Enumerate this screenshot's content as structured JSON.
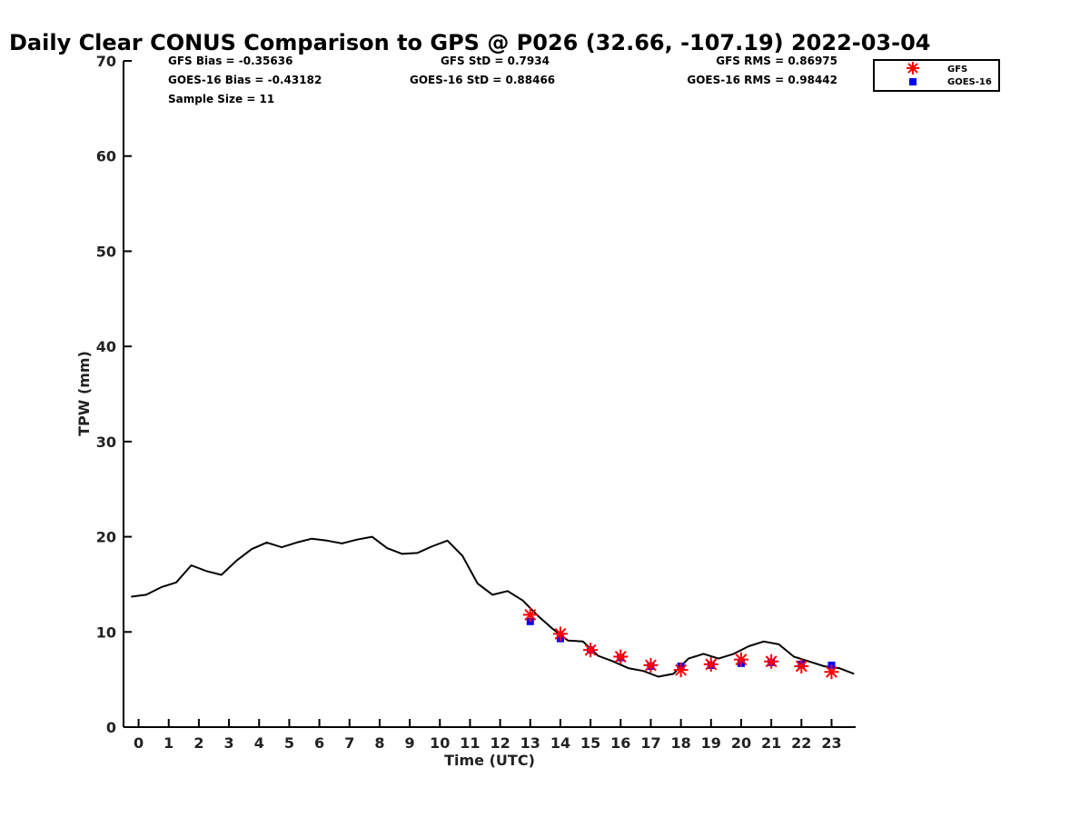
{
  "chart_data": {
    "type": "scatter",
    "title": "Daily Clear CONUS Comparison to GPS @ P026 (32.66, -107.19) 2022-03-04",
    "xlabel": "Time (UTC)",
    "ylabel": "TPW (mm)",
    "xlim": [
      -0.5,
      23.8
    ],
    "ylim": [
      0,
      70
    ],
    "xticks": [
      0,
      1,
      2,
      3,
      4,
      5,
      6,
      7,
      8,
      9,
      10,
      11,
      12,
      13,
      14,
      15,
      16,
      17,
      18,
      19,
      20,
      21,
      22,
      23
    ],
    "yticks": [
      0,
      10,
      20,
      30,
      40,
      50,
      60,
      70
    ],
    "grid": false,
    "legend_position": "top-right",
    "stats": {
      "gfs_bias": "GFS Bias = -0.35636",
      "goes_bias": "GOES-16 Bias = -0.43182",
      "sample_size": "Sample Size = 11",
      "gfs_std": "GFS StD = 0.7934",
      "goes_std": "GOES-16 StD = 0.88466",
      "gfs_rms": "GFS RMS = 0.86975",
      "goes_rms": "GOES-16 RMS = 0.98442"
    },
    "gps_line": {
      "color": "#000000",
      "x": [
        -0.25,
        0.25,
        0.75,
        1.25,
        1.75,
        2.25,
        2.75,
        3.25,
        3.75,
        4.25,
        4.75,
        5.25,
        5.75,
        6.25,
        6.75,
        7.25,
        7.75,
        8.25,
        8.75,
        9.25,
        9.75,
        10.25,
        10.75,
        11.25,
        11.75,
        12.25,
        12.75,
        13.25,
        13.75,
        14.25,
        14.75,
        15.25,
        15.75,
        16.25,
        16.75,
        17.25,
        17.75,
        18.25,
        18.75,
        19.25,
        19.75,
        20.25,
        20.75,
        21.25,
        21.75,
        22.25,
        22.75,
        23.25,
        23.75
      ],
      "y": [
        13.7,
        13.9,
        14.7,
        15.2,
        17.0,
        16.4,
        16.0,
        17.5,
        18.7,
        19.4,
        18.9,
        19.4,
        19.8,
        19.6,
        19.3,
        19.7,
        20.0,
        18.8,
        18.2,
        18.3,
        19.0,
        19.6,
        18.0,
        15.1,
        13.9,
        14.3,
        13.3,
        11.7,
        10.3,
        9.1,
        9.0,
        7.5,
        6.9,
        6.2,
        5.9,
        5.3,
        5.6,
        7.2,
        7.7,
        7.2,
        7.7,
        8.5,
        9.0,
        8.7,
        7.4,
        6.9,
        6.4,
        6.2,
        5.6
      ]
    },
    "series": [
      {
        "name": "GFS",
        "color": "#ff0000",
        "marker": "asterisk",
        "x": [
          13,
          14,
          15,
          16,
          17,
          18,
          19,
          20,
          21,
          22,
          23
        ],
        "y": [
          11.8,
          9.8,
          8.1,
          7.4,
          6.5,
          6.0,
          6.6,
          7.1,
          6.9,
          6.4,
          5.8
        ]
      },
      {
        "name": "GOES-16",
        "color": "#0000ff",
        "marker": "square",
        "x": [
          13,
          14,
          15,
          16,
          17,
          18,
          19,
          20,
          21,
          22,
          23
        ],
        "y": [
          11.1,
          9.3,
          8.1,
          7.3,
          6.4,
          6.4,
          6.5,
          6.7,
          6.8,
          6.6,
          6.5
        ]
      }
    ]
  }
}
